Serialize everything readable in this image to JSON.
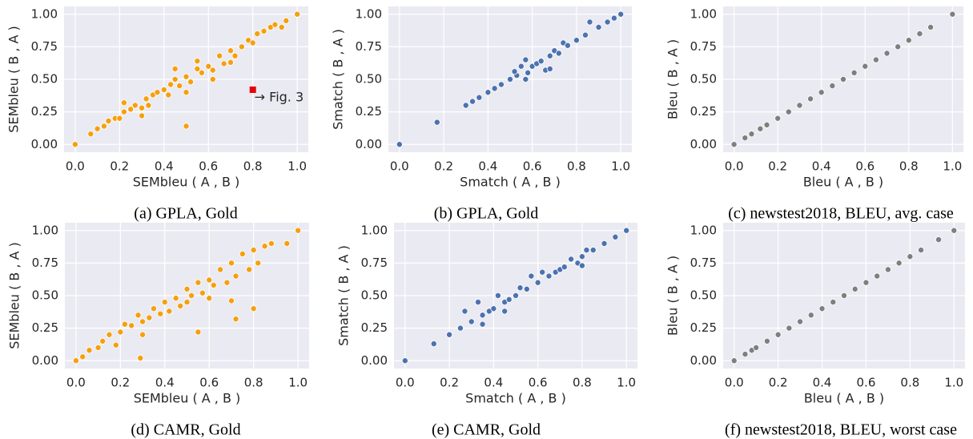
{
  "chart_data": [
    {
      "type": "scatter",
      "title": "(a) GPLA, Gold",
      "x_label": "SEMbleu ( A , B )",
      "y_label": "SEMbleu ( B , A )",
      "color": "#f5a00f",
      "grid": true,
      "xlim": [
        -0.05,
        1.05
      ],
      "ylim": [
        -0.06,
        1.06
      ],
      "xticks": [
        {
          "value": 0,
          "label": "0.0"
        },
        0.2,
        0.4,
        0.6,
        0.8,
        {
          "value": 1,
          "label": "1.0"
        }
      ],
      "yticks": [
        {
          "value": 0,
          "label": "0.00"
        },
        0.25,
        {
          "value": 0.5,
          "label": "0.50"
        },
        0.75,
        {
          "value": 1,
          "label": "1.00"
        }
      ],
      "x": [
        0,
        0.07,
        0.1,
        0.13,
        0.15,
        0.18,
        0.2,
        0.22,
        0.25,
        0.27,
        0.3,
        0.32,
        0.33,
        0.35,
        0.37,
        0.4,
        0.42,
        0.43,
        0.45,
        0.47,
        0.5,
        0.5,
        0.52,
        0.55,
        0.57,
        0.6,
        0.62,
        0.65,
        0.67,
        0.7,
        0.72,
        0.75,
        0.78,
        0.8,
        0.82,
        0.85,
        0.88,
        0.9,
        0.93,
        0.95,
        1.0,
        0.22,
        0.3,
        0.45,
        0.62,
        0.7,
        0.55,
        0.5
      ],
      "y": [
        0,
        0.08,
        0.12,
        0.14,
        0.18,
        0.2,
        0.2,
        0.25,
        0.27,
        0.3,
        0.28,
        0.35,
        0.3,
        0.38,
        0.4,
        0.42,
        0.38,
        0.46,
        0.5,
        0.45,
        0.52,
        0.14,
        0.48,
        0.58,
        0.55,
        0.6,
        0.57,
        0.68,
        0.62,
        0.72,
        0.68,
        0.75,
        0.8,
        0.78,
        0.85,
        0.87,
        0.9,
        0.92,
        0.9,
        0.95,
        1.0,
        0.32,
        0.22,
        0.58,
        0.5,
        0.63,
        0.64,
        0.4
      ],
      "annotation": {
        "text": "→ Fig. 3",
        "x": 0.8,
        "y": 0.42,
        "color": "#e8000b"
      }
    },
    {
      "type": "scatter",
      "title": "(b) GPLA, Gold",
      "x_label": "Smatch ( A , B )",
      "y_label": "Smatch ( B , A )",
      "color": "#4c72b0",
      "grid": true,
      "xlim": [
        -0.05,
        1.05
      ],
      "ylim": [
        -0.06,
        1.06
      ],
      "xticks": [
        {
          "value": 0,
          "label": "0.0"
        },
        0.2,
        0.4,
        0.6,
        0.8,
        {
          "value": 1,
          "label": "1.0"
        }
      ],
      "yticks": [
        {
          "value": 0,
          "label": "0.00"
        },
        0.25,
        {
          "value": 0.5,
          "label": "0.50"
        },
        0.75,
        {
          "value": 1,
          "label": "1.00"
        }
      ],
      "x": [
        0,
        0.17,
        0.3,
        0.33,
        0.36,
        0.4,
        0.43,
        0.46,
        0.5,
        0.53,
        0.55,
        0.57,
        0.58,
        0.6,
        0.62,
        0.64,
        0.66,
        0.68,
        0.7,
        0.72,
        0.74,
        0.76,
        0.8,
        0.84,
        0.86,
        0.9,
        0.94,
        0.97,
        1.0,
        0.68,
        0.57,
        0.52
      ],
      "y": [
        0,
        0.17,
        0.3,
        0.33,
        0.36,
        0.4,
        0.43,
        0.46,
        0.5,
        0.53,
        0.6,
        0.65,
        0.55,
        0.6,
        0.62,
        0.64,
        0.57,
        0.68,
        0.72,
        0.7,
        0.78,
        0.76,
        0.8,
        0.84,
        0.94,
        0.9,
        0.94,
        0.97,
        1.0,
        0.58,
        0.5,
        0.56
      ]
    },
    {
      "type": "scatter",
      "title": "(c) newstest2018, BLEU, avg. case",
      "x_label": "Bleu ( A , B )",
      "y_label": "Bleu ( B , A )",
      "color": "#7f7f7f",
      "grid": true,
      "xlim": [
        -0.05,
        1.05
      ],
      "ylim": [
        -0.06,
        1.06
      ],
      "xticks": [
        {
          "value": 0,
          "label": "0.0"
        },
        0.2,
        0.4,
        0.6,
        0.8,
        {
          "value": 1,
          "label": "1.0"
        }
      ],
      "yticks": [
        {
          "value": 0,
          "label": "0.00"
        },
        0.25,
        {
          "value": 0.5,
          "label": "0.50"
        },
        0.75,
        {
          "value": 1,
          "label": "1.00"
        }
      ],
      "x": [
        0,
        0.05,
        0.08,
        0.12,
        0.15,
        0.2,
        0.25,
        0.3,
        0.35,
        0.4,
        0.45,
        0.5,
        0.55,
        0.6,
        0.65,
        0.7,
        0.75,
        0.8,
        0.85,
        0.9,
        1.0
      ],
      "y": [
        0,
        0.05,
        0.08,
        0.12,
        0.15,
        0.2,
        0.25,
        0.3,
        0.35,
        0.4,
        0.45,
        0.5,
        0.55,
        0.6,
        0.65,
        0.7,
        0.75,
        0.8,
        0.85,
        0.9,
        1.0
      ]
    },
    {
      "type": "scatter",
      "title": "(d) CAMR, Gold",
      "x_label": "SEMbleu ( A , B )",
      "y_label": "SEMbleu ( B , A )",
      "color": "#f5a00f",
      "grid": true,
      "xlim": [
        -0.05,
        1.05
      ],
      "ylim": [
        -0.06,
        1.06
      ],
      "xticks": [
        {
          "value": 0,
          "label": "0.0"
        },
        0.2,
        0.4,
        0.6,
        0.8,
        {
          "value": 1,
          "label": "1.0"
        }
      ],
      "yticks": [
        {
          "value": 0,
          "label": "0.00"
        },
        0.25,
        {
          "value": 0.5,
          "label": "0.50"
        },
        0.75,
        {
          "value": 1,
          "label": "1.00"
        }
      ],
      "x": [
        0,
        0.03,
        0.06,
        0.1,
        0.12,
        0.15,
        0.18,
        0.2,
        0.22,
        0.25,
        0.28,
        0.3,
        0.3,
        0.33,
        0.35,
        0.38,
        0.4,
        0.42,
        0.45,
        0.47,
        0.5,
        0.5,
        0.52,
        0.55,
        0.57,
        0.6,
        0.6,
        0.62,
        0.65,
        0.68,
        0.7,
        0.72,
        0.75,
        0.78,
        0.8,
        0.82,
        0.85,
        0.88,
        0.95,
        1.0,
        0.72,
        0.55,
        0.29,
        0.8,
        0.7
      ],
      "y": [
        0,
        0.03,
        0.08,
        0.1,
        0.15,
        0.2,
        0.12,
        0.22,
        0.28,
        0.27,
        0.35,
        0.3,
        0.2,
        0.33,
        0.4,
        0.36,
        0.45,
        0.38,
        0.48,
        0.42,
        0.55,
        0.45,
        0.5,
        0.6,
        0.52,
        0.62,
        0.48,
        0.58,
        0.7,
        0.6,
        0.75,
        0.65,
        0.82,
        0.7,
        0.85,
        0.75,
        0.88,
        0.9,
        0.9,
        1.0,
        0.32,
        0.22,
        0.02,
        0.4,
        0.46
      ]
    },
    {
      "type": "scatter",
      "title": "(e) CAMR, Gold",
      "x_label": "Smatch ( A , B )",
      "y_label": "Smatch ( B , A )",
      "color": "#4c72b0",
      "grid": true,
      "xlim": [
        -0.05,
        1.05
      ],
      "ylim": [
        -0.06,
        1.06
      ],
      "xticks": [
        {
          "value": 0,
          "label": "0.0"
        },
        0.2,
        0.4,
        0.6,
        0.8,
        {
          "value": 1,
          "label": "1.0"
        }
      ],
      "yticks": [
        {
          "value": 0,
          "label": "0.00"
        },
        0.25,
        {
          "value": 0.5,
          "label": "0.50"
        },
        0.75,
        {
          "value": 1,
          "label": "1.00"
        }
      ],
      "x": [
        0,
        0.13,
        0.2,
        0.25,
        0.27,
        0.3,
        0.33,
        0.35,
        0.38,
        0.4,
        0.42,
        0.45,
        0.47,
        0.5,
        0.52,
        0.55,
        0.57,
        0.6,
        0.62,
        0.65,
        0.68,
        0.7,
        0.72,
        0.75,
        0.78,
        0.8,
        0.82,
        0.85,
        0.9,
        0.95,
        1.0,
        0.8,
        0.35,
        0.45
      ],
      "y": [
        0,
        0.13,
        0.2,
        0.25,
        0.38,
        0.3,
        0.45,
        0.35,
        0.38,
        0.4,
        0.5,
        0.45,
        0.47,
        0.5,
        0.56,
        0.55,
        0.65,
        0.6,
        0.68,
        0.65,
        0.68,
        0.7,
        0.72,
        0.78,
        0.75,
        0.8,
        0.85,
        0.85,
        0.9,
        0.95,
        1.0,
        0.73,
        0.28,
        0.38
      ]
    },
    {
      "type": "scatter",
      "title": "(f) newstest2018, BLEU, worst case",
      "x_label": "Bleu ( A , B )",
      "y_label": "Bleu ( B , A )",
      "color": "#7f7f7f",
      "grid": true,
      "xlim": [
        -0.05,
        1.05
      ],
      "ylim": [
        -0.06,
        1.06
      ],
      "xticks": [
        {
          "value": 0,
          "label": "0.0"
        },
        0.2,
        0.4,
        0.6,
        0.8,
        {
          "value": 1,
          "label": "1.0"
        }
      ],
      "yticks": [
        {
          "value": 0,
          "label": "0.00"
        },
        0.25,
        {
          "value": 0.5,
          "label": "0.50"
        },
        0.75,
        {
          "value": 1,
          "label": "1.00"
        }
      ],
      "x": [
        0,
        0.05,
        0.08,
        0.1,
        0.15,
        0.2,
        0.25,
        0.3,
        0.35,
        0.4,
        0.45,
        0.5,
        0.55,
        0.6,
        0.65,
        0.7,
        0.75,
        0.8,
        0.85,
        0.93,
        1.0
      ],
      "y": [
        0,
        0.05,
        0.08,
        0.1,
        0.15,
        0.2,
        0.25,
        0.3,
        0.35,
        0.4,
        0.45,
        0.5,
        0.55,
        0.6,
        0.65,
        0.7,
        0.75,
        0.8,
        0.85,
        0.93,
        1.0
      ]
    }
  ]
}
